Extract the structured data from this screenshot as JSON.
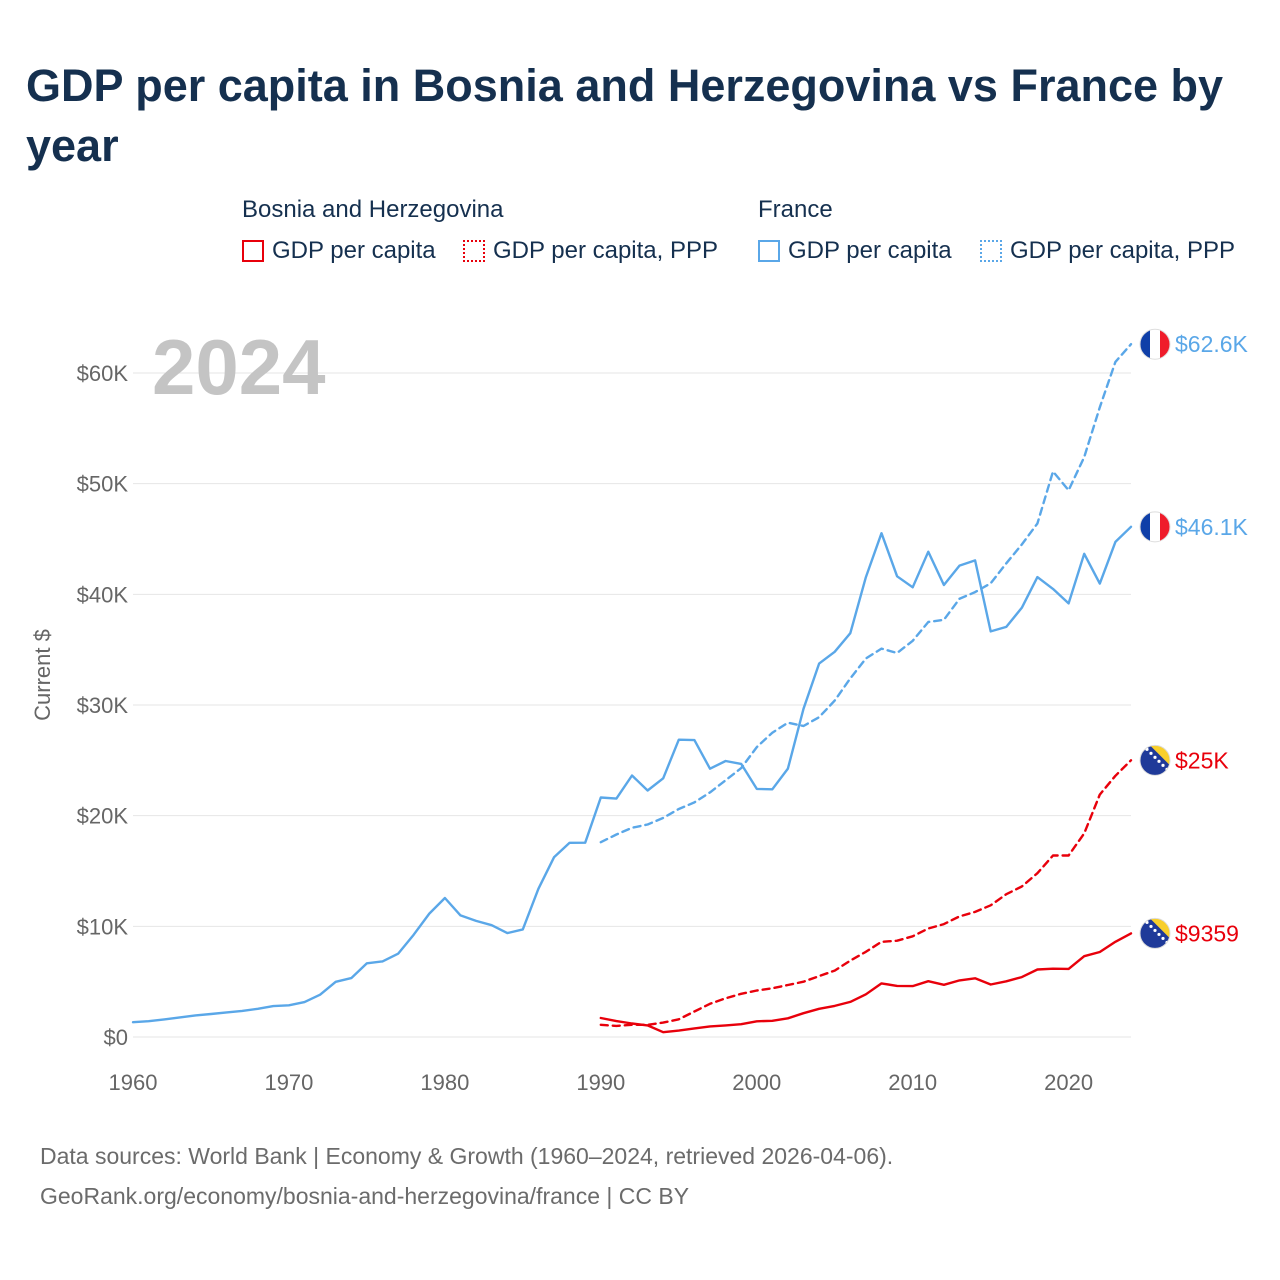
{
  "title": "GDP per capita in Bosnia and Herzegovina vs France by year",
  "legend": {
    "groups": [
      {
        "name": "Bosnia and Herzegovina",
        "color": "#e8000b",
        "items": [
          "GDP per capita",
          "GDP per capita, PPP"
        ]
      },
      {
        "name": "France",
        "color": "#5aa7e8",
        "items": [
          "GDP per capita",
          "GDP per capita, PPP"
        ]
      }
    ]
  },
  "footer": {
    "line1": "Data sources: World Bank | Economy & Growth (1960–2024, retrieved 2026-04-06).",
    "line2": "GeoRank.org/economy/bosnia-and-herzegovina/france | CC BY"
  },
  "chart_data": {
    "type": "line",
    "title": "GDP per capita in Bosnia and Herzegovina vs France by year",
    "year_label": "2024",
    "xlabel": "",
    "ylabel": "Current $",
    "xlim": [
      1960,
      2024
    ],
    "ylim": [
      0,
      65000
    ],
    "x_ticks": [
      1960,
      1970,
      1980,
      1990,
      2000,
      2010,
      2020
    ],
    "y_ticks": [
      {
        "value": 0,
        "label": "$0"
      },
      {
        "value": 10000,
        "label": "$10K"
      },
      {
        "value": 20000,
        "label": "$20K"
      },
      {
        "value": 30000,
        "label": "$30K"
      },
      {
        "value": 40000,
        "label": "$40K"
      },
      {
        "value": 50000,
        "label": "$50K"
      },
      {
        "value": 60000,
        "label": "$60K"
      }
    ],
    "grid": true,
    "series": [
      {
        "name": "France — GDP per capita",
        "country": "France",
        "color": "#5aa7e8",
        "dash": "solid",
        "end_label": "$46.1K",
        "flag": "france",
        "x_start": 1960,
        "values": [
          1340,
          1430,
          1590,
          1770,
          1950,
          2080,
          2220,
          2360,
          2550,
          2790,
          2860,
          3150,
          3820,
          4990,
          5320,
          6660,
          6830,
          7530,
          9240,
          11150,
          12560,
          10990,
          10490,
          10100,
          9390,
          9720,
          13390,
          16240,
          17550,
          17560,
          21640,
          21540,
          23630,
          22270,
          23380,
          26860,
          26830,
          24240,
          24940,
          24680,
          22420,
          22380,
          24250,
          29660,
          33740,
          34810,
          36490,
          41560,
          45520,
          41630,
          40640,
          43850,
          40840,
          42600,
          43070,
          36650,
          37060,
          38780,
          41560,
          40490,
          39180,
          43660,
          40970,
          44740,
          46100
        ]
      },
      {
        "name": "France — GDP per capita, PPP",
        "country": "France",
        "color": "#5aa7e8",
        "dash": "dashed",
        "end_label": "$62.6K",
        "flag": "france",
        "x_start": 1990,
        "values": [
          17600,
          18300,
          18900,
          19200,
          19800,
          20600,
          21200,
          22100,
          23200,
          24300,
          26200,
          27500,
          28400,
          28100,
          28900,
          30400,
          32400,
          34200,
          35100,
          34700,
          35800,
          37500,
          37700,
          39600,
          40200,
          41000,
          42800,
          44500,
          46400,
          51100,
          49400,
          52400,
          56900,
          61000,
          62600
        ]
      },
      {
        "name": "Bosnia and Herzegovina — GDP per capita",
        "country": "Bosnia and Herzegovina",
        "color": "#e8000b",
        "dash": "solid",
        "end_label": "$9359",
        "flag": "bosnia",
        "x_start": 1990,
        "values": [
          1720,
          1440,
          1220,
          1050,
          430,
          580,
          780,
          960,
          1050,
          1160,
          1420,
          1460,
          1690,
          2150,
          2550,
          2810,
          3170,
          3860,
          4840,
          4620,
          4600,
          5040,
          4720,
          5110,
          5300,
          4740,
          5030,
          5410,
          6100,
          6170,
          6150,
          7300,
          7680,
          8600,
          9359
        ]
      },
      {
        "name": "Bosnia and Herzegovina — GDP per capita, PPP",
        "country": "Bosnia and Herzegovina",
        "color": "#e8000b",
        "dash": "dashed",
        "end_label": "$25K",
        "flag": "bosnia",
        "x_start": 1990,
        "values": [
          1100,
          1000,
          1100,
          1100,
          1300,
          1600,
          2300,
          3000,
          3500,
          3900,
          4200,
          4400,
          4700,
          5000,
          5500,
          6000,
          6900,
          7700,
          8600,
          8700,
          9100,
          9800,
          10200,
          10900,
          11300,
          11900,
          12900,
          13600,
          14800,
          16400,
          16400,
          18400,
          21900,
          23600,
          25000
        ]
      }
    ]
  }
}
